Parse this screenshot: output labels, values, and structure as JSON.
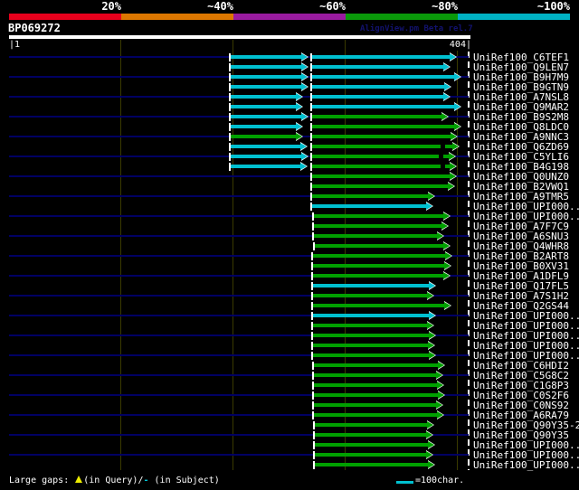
{
  "header": {
    "query_id": "BP069272",
    "credit": "AlignView.pm Beta rel.7",
    "axis_left": "|1",
    "axis_right": "404|"
  },
  "chart_data": {
    "type": "alignment_overview_chart",
    "title": "BP069272",
    "query_length": 404,
    "axis": {
      "min": 1,
      "max": 404,
      "tick_labels": [
        "1",
        "404"
      ],
      "grid": "on"
    },
    "legend_position": "top",
    "legend": [
      {
        "label": "20%",
        "color": "#e8001c"
      },
      {
        "label": "~40%",
        "color": "#dd7700"
      },
      {
        "label": "~60%",
        "color": "#9a1ba0"
      },
      {
        "label": "~80%",
        "color": "#0a9a0a"
      },
      {
        "label": "~100%",
        "color": "#00b2c4"
      }
    ],
    "rows": [
      {
        "label": "UniRef100_C6TEF1",
        "segments": [
          [
            195,
            263,
            "cyan"
          ],
          [
            266,
            393,
            "cyan"
          ]
        ]
      },
      {
        "label": "UniRef100_Q9LEN7",
        "segments": [
          [
            195,
            263,
            "cyan"
          ],
          [
            266,
            387,
            "cyan"
          ]
        ]
      },
      {
        "label": "UniRef100_B9H7M9",
        "segments": [
          [
            195,
            263,
            "cyan"
          ],
          [
            266,
            397,
            "cyan"
          ]
        ]
      },
      {
        "label": "UniRef100_B9GTN9",
        "segments": [
          [
            195,
            263,
            "cyan"
          ],
          [
            266,
            388,
            "cyan"
          ]
        ]
      },
      {
        "label": "UniRef100_A7NSL8",
        "segments": [
          [
            195,
            258,
            "cyan"
          ],
          [
            266,
            387,
            "cyan"
          ]
        ]
      },
      {
        "label": "UniRef100_Q9MAR2",
        "segments": [
          [
            195,
            258,
            "cyan"
          ],
          [
            266,
            397,
            "cyan"
          ]
        ]
      },
      {
        "label": "UniRef100_B9S2M8",
        "segments": [
          [
            195,
            263,
            "cyan"
          ],
          [
            266,
            386,
            "green"
          ]
        ]
      },
      {
        "label": "UniRef100_Q8LDC0",
        "segments": [
          [
            195,
            258,
            "cyan"
          ],
          [
            266,
            397,
            "green"
          ]
        ]
      },
      {
        "label": "UniRef100_A9NNC3",
        "segments": [
          [
            195,
            258,
            "green"
          ],
          [
            266,
            394,
            "green"
          ]
        ]
      },
      {
        "label": "UniRef100_Q6ZD69",
        "segments": [
          [
            195,
            262,
            "cyan"
          ],
          [
            266,
            395,
            "green"
          ]
        ],
        "gaps": [
          380
        ]
      },
      {
        "label": "UniRef100_C5YLI6",
        "segments": [
          [
            195,
            263,
            "cyan"
          ],
          [
            266,
            392,
            "green"
          ]
        ],
        "gaps": [
          379
        ]
      },
      {
        "label": "UniRef100_B4G198",
        "segments": [
          [
            195,
            262,
            "cyan"
          ],
          [
            266,
            393,
            "green"
          ]
        ],
        "gaps": [
          380
        ]
      },
      {
        "label": "UniRef100_Q0UNZ0",
        "segments": [
          [
            266,
            393,
            "green"
          ]
        ]
      },
      {
        "label": "UniRef100_B2VWQ1",
        "segments": [
          [
            266,
            391,
            "green"
          ]
        ]
      },
      {
        "label": "UniRef100_A9TMR5",
        "segments": [
          [
            266,
            374,
            "green"
          ]
        ]
      },
      {
        "label": "UniRef100_UPI000..",
        "segments": [
          [
            266,
            372,
            "cyan"
          ]
        ]
      },
      {
        "label": "UniRef100_UPI000..",
        "segments": [
          [
            268,
            387,
            "green"
          ]
        ]
      },
      {
        "label": "UniRef100_A7F7C9",
        "segments": [
          [
            268,
            386,
            "green"
          ]
        ]
      },
      {
        "label": "UniRef100_A6SNU3",
        "segments": [
          [
            268,
            382,
            "green"
          ]
        ]
      },
      {
        "label": "UniRef100_Q4WHR8",
        "segments": [
          [
            269,
            387,
            "green"
          ]
        ]
      },
      {
        "label": "UniRef100_B2ART8",
        "segments": [
          [
            267,
            389,
            "green"
          ]
        ]
      },
      {
        "label": "UniRef100_B0XV31",
        "segments": [
          [
            267,
            388,
            "green"
          ]
        ]
      },
      {
        "label": "UniRef100_A1DFL9",
        "segments": [
          [
            267,
            387,
            "green"
          ]
        ]
      },
      {
        "label": "UniRef100_Q17FL5",
        "segments": [
          [
            267,
            375,
            "cyan"
          ]
        ]
      },
      {
        "label": "UniRef100_A7S1H2",
        "segments": [
          [
            267,
            373,
            "green"
          ]
        ]
      },
      {
        "label": "UniRef100_Q2GS44",
        "segments": [
          [
            267,
            388,
            "green"
          ]
        ]
      },
      {
        "label": "UniRef100_UPI000..",
        "segments": [
          [
            267,
            375,
            "cyan"
          ]
        ]
      },
      {
        "label": "UniRef100_UPI000..",
        "segments": [
          [
            267,
            373,
            "green"
          ]
        ]
      },
      {
        "label": "UniRef100_UPI000..",
        "segments": [
          [
            267,
            375,
            "green"
          ]
        ]
      },
      {
        "label": "UniRef100_UPI000..",
        "segments": [
          [
            267,
            374,
            "green"
          ]
        ]
      },
      {
        "label": "UniRef100_UPI000..",
        "segments": [
          [
            267,
            375,
            "green"
          ]
        ]
      },
      {
        "label": "UniRef100_C6HDI2",
        "segments": [
          [
            268,
            383,
            "green"
          ]
        ]
      },
      {
        "label": "UniRef100_C5G8C2",
        "segments": [
          [
            268,
            381,
            "green"
          ]
        ]
      },
      {
        "label": "UniRef100_C1G8P3",
        "segments": [
          [
            268,
            382,
            "green"
          ]
        ]
      },
      {
        "label": "UniRef100_C0S2F6",
        "segments": [
          [
            268,
            383,
            "green"
          ]
        ]
      },
      {
        "label": "UniRef100_C0NS92",
        "segments": [
          [
            268,
            381,
            "green"
          ]
        ]
      },
      {
        "label": "UniRef100_A6RA79",
        "segments": [
          [
            268,
            382,
            "green"
          ]
        ]
      },
      {
        "label": "UniRef100_Q90Y35-2",
        "segments": [
          [
            269,
            373,
            "green"
          ]
        ]
      },
      {
        "label": "UniRef100_Q90Y35",
        "segments": [
          [
            269,
            372,
            "green"
          ]
        ]
      },
      {
        "label": "UniRef100_UPI000..",
        "segments": [
          [
            269,
            374,
            "green"
          ]
        ]
      },
      {
        "label": "UniRef100_UPI000..",
        "segments": [
          [
            269,
            372,
            "green"
          ]
        ]
      },
      {
        "label": "UniRef100_UPI000..",
        "segments": [
          [
            269,
            374,
            "green"
          ]
        ]
      }
    ]
  },
  "footer": {
    "gaps_prefix": "Large gaps: ",
    "query_text": "(in Query)/",
    "subject_symbol": "-",
    "subject_text": " (in Subject)",
    "ruler_text": "=100char."
  },
  "colors": {
    "background": "#000000",
    "row_guide": "#000063",
    "grid_line": "#3a3a00",
    "credit_text": "#12126e",
    "query_gap_marker": "#ecec00",
    "ruler_legend": "#00c0d0",
    "bar_palette": {
      "cyan": "#00c0d0",
      "green": "#00a000"
    }
  }
}
